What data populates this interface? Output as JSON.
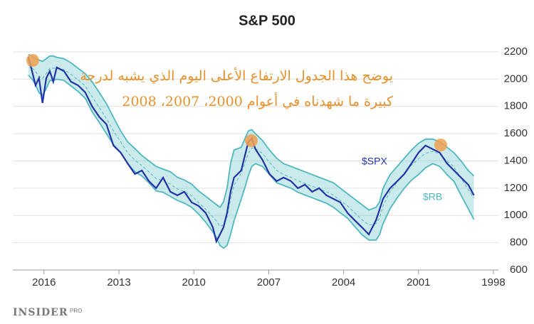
{
  "chart_data": {
    "type": "band-line",
    "title": "S&P 500",
    "annotation": [
      "يوضح هذا الجدول الارتفاع الأعلى اليوم الذي يشبه لدرجة",
      "كبيرة ما شهدناه في أعوام 2000، 2007، 2008"
    ],
    "x": [
      2016.63,
      2016.48,
      2016.34,
      2016.2,
      2016.06,
      2015.91,
      2015.77,
      2015.63,
      2015.49,
      2015.2,
      2014.92,
      2014.64,
      2014.35,
      2014.07,
      2013.78,
      2013.5,
      2013.22,
      2012.93,
      2012.65,
      2012.36,
      2012.08,
      2011.8,
      2011.51,
      2011.23,
      2010.94,
      2010.66,
      2010.38,
      2010.09,
      2009.81,
      2009.52,
      2009.24,
      2009.1,
      2008.95,
      2008.81,
      2008.67,
      2008.53,
      2008.39,
      2008.1,
      2007.96,
      2007.82,
      2007.68,
      2007.53,
      2007.25,
      2006.97,
      2006.68,
      2006.4,
      2006.11,
      2005.83,
      2005.55,
      2005.26,
      2004.98,
      2004.69,
      2004.41,
      2004.13,
      2003.84,
      2003.56,
      2003.27,
      2002.99,
      2002.7,
      2002.56,
      2002.42,
      2002.14,
      2001.85,
      2001.57,
      2001.28,
      2001.0,
      2000.72,
      2000.43,
      2000.15,
      1999.86,
      1999.58,
      1999.3,
      1999.01,
      1998.78
    ],
    "series": [
      {
        "name": "$SPX",
        "color": "#2233a8",
        "values": [
          2164,
          2059,
          1955,
          2007,
          1825,
          2007,
          2059,
          1981,
          2086,
          2059,
          1981,
          1955,
          1903,
          1799,
          1721,
          1669,
          1513,
          1461,
          1382,
          1304,
          1330,
          1252,
          1200,
          1278,
          1174,
          1148,
          1174,
          1096,
          1070,
          1018,
          914,
          809,
          861,
          914,
          1018,
          1174,
          1278,
          1330,
          1434,
          1538,
          1565,
          1486,
          1408,
          1304,
          1252,
          1278,
          1252,
          1200,
          1226,
          1174,
          1200,
          1148,
          1122,
          1096,
          1018,
          966,
          914,
          861,
          966,
          1044,
          1122,
          1200,
          1252,
          1304,
          1382,
          1461,
          1513,
          1486,
          1461,
          1382,
          1330,
          1278,
          1226,
          1148
        ]
      },
      {
        "name": "$RB",
        "color": "#4fb8bf",
        "upper": [
          2180,
          2170,
          2150,
          2140,
          2130,
          2150,
          2170,
          2170,
          2160,
          2150,
          2120,
          2080,
          2040,
          1980,
          1900,
          1820,
          1720,
          1620,
          1540,
          1490,
          1440,
          1400,
          1360,
          1340,
          1320,
          1280,
          1260,
          1230,
          1180,
          1140,
          1100,
          1080,
          1060,
          1100,
          1200,
          1380,
          1480,
          1500,
          1560,
          1620,
          1630,
          1600,
          1550,
          1480,
          1420,
          1380,
          1360,
          1340,
          1320,
          1300,
          1280,
          1260,
          1240,
          1200,
          1160,
          1120,
          1080,
          1040,
          1060,
          1100,
          1200,
          1300,
          1360,
          1420,
          1480,
          1530,
          1560,
          1560,
          1540,
          1500,
          1460,
          1400,
          1330,
          1290
        ],
        "lower": [
          2030,
          2000,
          1960,
          1900,
          1880,
          1930,
          1990,
          1990,
          2000,
          1990,
          1950,
          1910,
          1860,
          1760,
          1680,
          1600,
          1520,
          1460,
          1380,
          1320,
          1290,
          1240,
          1180,
          1170,
          1140,
          1110,
          1090,
          1060,
          1010,
          950,
          880,
          840,
          780,
          760,
          780,
          860,
          960,
          1120,
          1200,
          1290,
          1360,
          1380,
          1360,
          1300,
          1240,
          1220,
          1200,
          1170,
          1150,
          1130,
          1110,
          1090,
          1060,
          1020,
          980,
          920,
          860,
          820,
          820,
          860,
          940,
          1050,
          1130,
          1200,
          1260,
          1300,
          1350,
          1380,
          1360,
          1300,
          1250,
          1150,
          1050,
          970
        ]
      }
    ],
    "xlim": [
      2017.25,
      1997.8
    ],
    "xticks": [
      2016,
      2013,
      2010,
      2007,
      2004,
      2001,
      1998
    ],
    "ylim": [
      600,
      2200
    ],
    "yticks": [
      600,
      800,
      1000,
      1200,
      1400,
      1600,
      1800,
      2000,
      2200
    ],
    "grid": true,
    "logo": "INSIDER",
    "logo_tag": "PRO"
  }
}
